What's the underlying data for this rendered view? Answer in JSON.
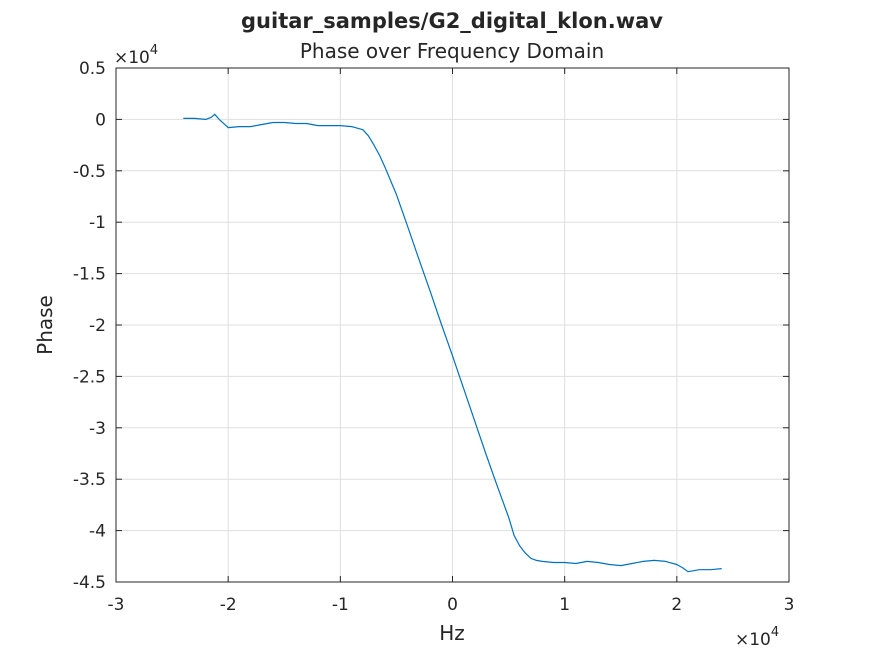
{
  "chart_data": {
    "type": "line",
    "title": "guitar_samples/G2_digital_klon.wav",
    "subtitle": "Phase over Frequency Domain",
    "xlabel": "Hz",
    "ylabel": "Phase",
    "x_exponent_label": "×10",
    "x_exponent_power": "4",
    "y_exponent_label": "×10",
    "y_exponent_power": "4",
    "xlim": [
      -3,
      3
    ],
    "ylim": [
      -4.5,
      0.5
    ],
    "x_scale_note": "values in units of 10^4 Hz",
    "y_scale_note": "values in units of 10^4",
    "xticks": [
      "-3",
      "-2",
      "-1",
      "0",
      "1",
      "2",
      "3"
    ],
    "yticks": [
      "0.5",
      "0",
      "-0.5",
      "-1",
      "-1.5",
      "-2",
      "-2.5",
      "-3",
      "-3.5",
      "-4",
      "-4.5"
    ],
    "grid": true,
    "line_color": "#0072bd",
    "series": [
      {
        "x": [
          -2.4,
          -2.3,
          -2.2,
          -2.15,
          -2.12,
          -2.08,
          -2.0,
          -1.9,
          -1.8,
          -1.7,
          -1.6,
          -1.5,
          -1.4,
          -1.3,
          -1.2,
          -1.1,
          -1.0,
          -0.9,
          -0.8,
          -0.75,
          -0.7,
          -0.65,
          -0.6,
          -0.55,
          -0.5,
          -0.4,
          -0.3,
          -0.2,
          -0.1,
          0.0,
          0.1,
          0.2,
          0.3,
          0.4,
          0.5,
          0.55,
          0.6,
          0.65,
          0.7,
          0.75,
          0.8,
          0.9,
          1.0,
          1.1,
          1.2,
          1.3,
          1.4,
          1.5,
          1.6,
          1.7,
          1.8,
          1.9,
          2.0,
          2.05,
          2.1,
          2.15,
          2.2,
          2.3,
          2.4
        ],
        "y": [
          0.01,
          0.01,
          0.0,
          0.02,
          0.05,
          0.0,
          -0.08,
          -0.07,
          -0.07,
          -0.05,
          -0.03,
          -0.03,
          -0.04,
          -0.04,
          -0.06,
          -0.06,
          -0.06,
          -0.07,
          -0.1,
          -0.16,
          -0.25,
          -0.35,
          -0.47,
          -0.6,
          -0.73,
          -1.04,
          -1.36,
          -1.67,
          -1.99,
          -2.3,
          -2.62,
          -2.94,
          -3.26,
          -3.57,
          -3.87,
          -4.05,
          -4.15,
          -4.22,
          -4.27,
          -4.29,
          -4.3,
          -4.31,
          -4.31,
          -4.32,
          -4.3,
          -4.31,
          -4.33,
          -4.34,
          -4.32,
          -4.3,
          -4.29,
          -4.3,
          -4.33,
          -4.36,
          -4.4,
          -4.39,
          -4.38,
          -4.38,
          -4.37
        ]
      }
    ]
  }
}
